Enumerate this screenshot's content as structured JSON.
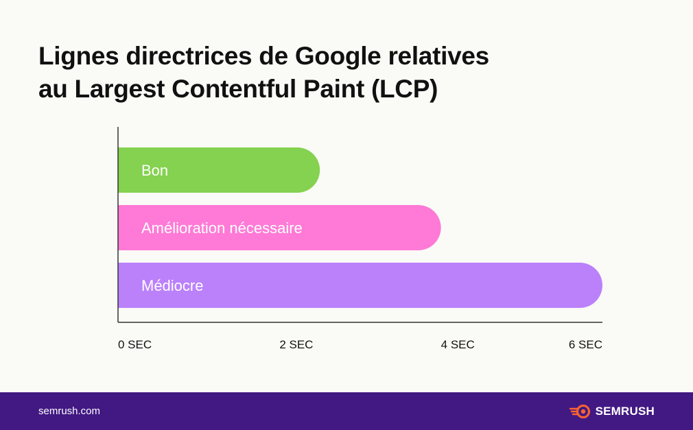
{
  "title_lines": [
    "Lignes directrices de Google relatives",
    "au Largest Contentful Paint (LCP)"
  ],
  "chart_data": {
    "type": "bar",
    "orientation": "horizontal",
    "categories": [
      "Bon",
      "Amélioration nécessaire",
      "Médiocre"
    ],
    "values": [
      2.5,
      4,
      6
    ],
    "colors": [
      "#84d24f",
      "#ff7ad6",
      "#bb81fb"
    ],
    "xlim": [
      0,
      6
    ],
    "xticks": [
      {
        "value": 0,
        "label": "0 SEC"
      },
      {
        "value": 2,
        "label": "2 SEC"
      },
      {
        "value": 4,
        "label": "4 SEC"
      },
      {
        "value": 6,
        "label": "6 SEC"
      }
    ],
    "grid": false,
    "legend": false
  },
  "footer": {
    "url": "semrush.com",
    "brand": "SEMRUSH",
    "brand_color": "#ff642d",
    "background": "#421983"
  }
}
